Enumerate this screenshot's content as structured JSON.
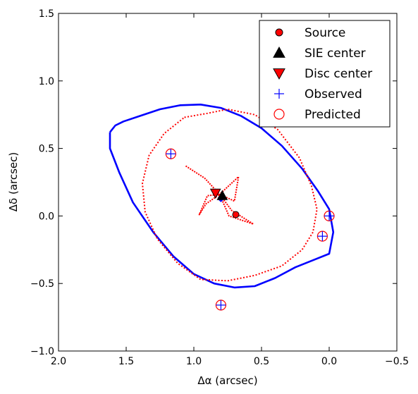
{
  "chart_data": {
    "type": "scatter",
    "xlabel": "Δα (arcsec)",
    "ylabel": "Δδ (arcsec)",
    "xlim": [
      2.0,
      -0.5
    ],
    "ylim": [
      -1.0,
      1.5
    ],
    "x_ticks": [
      2.0,
      1.5,
      1.0,
      0.5,
      0.0,
      -0.5
    ],
    "x_tick_labels": [
      "2.0",
      "1.5",
      "1.0",
      "0.5",
      "0.0",
      "−0.5"
    ],
    "y_ticks": [
      -1.0,
      -0.5,
      0.0,
      0.5,
      1.0,
      1.5
    ],
    "y_tick_labels": [
      "−1.0",
      "−0.5",
      "0.0",
      "0.5",
      "1.0",
      "1.5"
    ],
    "grid": false,
    "legend_placement": "top-right",
    "legend": [
      {
        "label": "Source",
        "marker": "circle",
        "color": "#ff0000"
      },
      {
        "label": "SIE center",
        "marker": "triangle-up",
        "color": "#000000"
      },
      {
        "label": "Disc center",
        "marker": "triangle-down",
        "color": "#ff0000"
      },
      {
        "label": "Observed",
        "marker": "plus",
        "color": "#0000ff"
      },
      {
        "label": "Predicted",
        "marker": "open-circle",
        "color": "#ff0000"
      }
    ],
    "points": {
      "source": [
        [
          0.69,
          0.01
        ]
      ],
      "sie_center": [
        [
          0.79,
          0.15
        ]
      ],
      "disc_center": [
        [
          0.84,
          0.17
        ]
      ],
      "observed": [
        [
          1.17,
          0.46
        ],
        [
          0.0,
          0.0
        ],
        [
          0.05,
          -0.15
        ],
        [
          0.8,
          -0.66
        ]
      ],
      "predicted": [
        [
          1.17,
          0.46
        ],
        [
          0.0,
          0.0
        ],
        [
          0.05,
          -0.15
        ],
        [
          0.8,
          -0.66
        ]
      ]
    },
    "curves": {
      "outer_critical_blue": {
        "color": "#0000ff",
        "points": [
          [
            1.62,
            0.62
          ],
          [
            1.58,
            0.67
          ],
          [
            1.52,
            0.7
          ],
          [
            1.4,
            0.74
          ],
          [
            1.25,
            0.79
          ],
          [
            1.1,
            0.82
          ],
          [
            0.95,
            0.825
          ],
          [
            0.8,
            0.8
          ],
          [
            0.65,
            0.74
          ],
          [
            0.5,
            0.65
          ],
          [
            0.35,
            0.52
          ],
          [
            0.2,
            0.35
          ],
          [
            0.08,
            0.18
          ],
          [
            0.0,
            0.05
          ],
          [
            -0.03,
            -0.12
          ],
          [
            0.0,
            -0.28
          ],
          [
            0.1,
            -0.32
          ],
          [
            0.25,
            -0.38
          ],
          [
            0.4,
            -0.46
          ],
          [
            0.55,
            -0.52
          ],
          [
            0.7,
            -0.53
          ],
          [
            0.85,
            -0.5
          ],
          [
            1.0,
            -0.43
          ],
          [
            1.15,
            -0.3
          ],
          [
            1.3,
            -0.12
          ],
          [
            1.45,
            0.1
          ],
          [
            1.55,
            0.32
          ],
          [
            1.62,
            0.5
          ],
          [
            1.62,
            0.62
          ]
        ]
      },
      "tangential_critical_red": {
        "color": "#ff0000",
        "points": [
          [
            1.07,
            0.73
          ],
          [
            0.9,
            0.76
          ],
          [
            0.75,
            0.79
          ],
          [
            0.55,
            0.75
          ],
          [
            0.38,
            0.64
          ],
          [
            0.22,
            0.43
          ],
          [
            0.13,
            0.22
          ],
          [
            0.09,
            0.05
          ],
          [
            0.12,
            -0.12
          ],
          [
            0.2,
            -0.25
          ],
          [
            0.35,
            -0.37
          ],
          [
            0.55,
            -0.44
          ],
          [
            0.75,
            -0.48
          ],
          [
            0.95,
            -0.47
          ],
          [
            1.12,
            -0.35
          ],
          [
            1.27,
            -0.17
          ],
          [
            1.36,
            0.03
          ],
          [
            1.38,
            0.24
          ],
          [
            1.33,
            0.45
          ],
          [
            1.22,
            0.61
          ],
          [
            1.07,
            0.73
          ]
        ]
      },
      "caustic_red": {
        "color": "#ff0000",
        "points": [
          [
            1.06,
            0.37
          ],
          [
            0.92,
            0.28
          ],
          [
            0.81,
            0.16
          ],
          [
            0.7,
            0.11
          ],
          [
            0.67,
            0.29
          ],
          [
            0.81,
            0.16
          ],
          [
            0.72,
            0.04
          ],
          [
            0.56,
            -0.06
          ],
          [
            0.74,
            0.0
          ],
          [
            0.81,
            0.16
          ],
          [
            0.91,
            0.09
          ],
          [
            0.96,
            0.01
          ],
          [
            0.9,
            0.15
          ],
          [
            0.81,
            0.16
          ]
        ]
      },
      "radial_critical_blue": {
        "color": "#0000ff",
        "points": [
          [
            0.82,
            0.13
          ],
          [
            0.8,
            0.11
          ],
          [
            0.78,
            0.13
          ],
          [
            0.8,
            0.15
          ],
          [
            0.82,
            0.13
          ]
        ]
      }
    }
  }
}
